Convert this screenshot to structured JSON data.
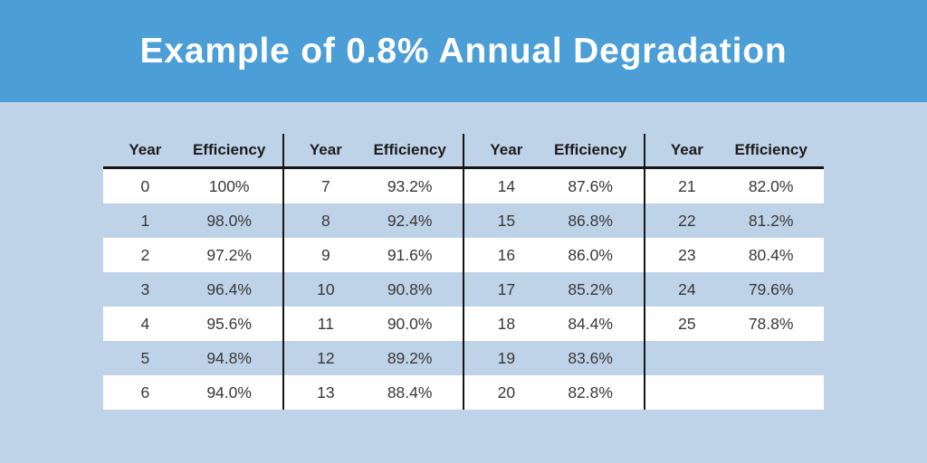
{
  "title": "Example of 0.8% Annual Degradation",
  "colors": {
    "banner_background": "#4C9ED7",
    "page_background": "#BFD3E8",
    "row_white": "#FFFFFF",
    "row_alternate": "#BFD3E8",
    "rule_line": "#151515",
    "title_text": "#FFFFFF",
    "header_text": "#1C1C1C",
    "cell_text": "#383838"
  },
  "table": {
    "column_headers": [
      "Year",
      "Efficiency"
    ],
    "groups": [
      {
        "rows": [
          [
            "0",
            "100%"
          ],
          [
            "1",
            "98.0%"
          ],
          [
            "2",
            "97.2%"
          ],
          [
            "3",
            "96.4%"
          ],
          [
            "4",
            "95.6%"
          ],
          [
            "5",
            "94.8%"
          ],
          [
            "6",
            "94.0%"
          ]
        ]
      },
      {
        "rows": [
          [
            "7",
            "93.2%"
          ],
          [
            "8",
            "92.4%"
          ],
          [
            "9",
            "91.6%"
          ],
          [
            "10",
            "90.8%"
          ],
          [
            "11",
            "90.0%"
          ],
          [
            "12",
            "89.2%"
          ],
          [
            "13",
            "88.4%"
          ]
        ]
      },
      {
        "rows": [
          [
            "14",
            "87.6%"
          ],
          [
            "15",
            "86.8%"
          ],
          [
            "16",
            "86.0%"
          ],
          [
            "17",
            "85.2%"
          ],
          [
            "18",
            "84.4%"
          ],
          [
            "19",
            "83.6%"
          ],
          [
            "20",
            "82.8%"
          ]
        ]
      },
      {
        "rows": [
          [
            "21",
            "82.0%"
          ],
          [
            "22",
            "81.2%"
          ],
          [
            "23",
            "80.4%"
          ],
          [
            "24",
            "79.6%"
          ],
          [
            "25",
            "78.8%"
          ],
          [
            "",
            ""
          ],
          [
            "",
            ""
          ]
        ]
      }
    ]
  },
  "chart_data": {
    "type": "table",
    "title": "Example of 0.8% Annual Degradation",
    "columns": [
      "Year",
      "Efficiency"
    ],
    "annual_degradation_percent": 0.8,
    "years": [
      0,
      1,
      2,
      3,
      4,
      5,
      6,
      7,
      8,
      9,
      10,
      11,
      12,
      13,
      14,
      15,
      16,
      17,
      18,
      19,
      20,
      21,
      22,
      23,
      24,
      25
    ],
    "efficiency_percent": [
      100,
      98.0,
      97.2,
      96.4,
      95.6,
      94.8,
      94.0,
      93.2,
      92.4,
      91.6,
      90.8,
      90.0,
      89.2,
      88.4,
      87.6,
      86.8,
      86.0,
      85.2,
      84.4,
      83.6,
      82.8,
      82.0,
      81.2,
      80.4,
      79.6,
      78.8
    ],
    "efficiency_labels": [
      "100%",
      "98.0%",
      "97.2%",
      "96.4%",
      "95.6%",
      "94.8%",
      "94.0%",
      "93.2%",
      "92.4%",
      "91.6%",
      "90.8%",
      "90.0%",
      "89.2%",
      "88.4%",
      "87.6%",
      "86.8%",
      "86.0%",
      "85.2%",
      "84.4%",
      "83.6%",
      "82.8%",
      "82.0%",
      "81.2%",
      "80.4%",
      "79.6%",
      "78.8%"
    ],
    "layout": "4 column groups of Year/Efficiency pairs, 7 rows per group, alternating white and light blue row bands"
  }
}
